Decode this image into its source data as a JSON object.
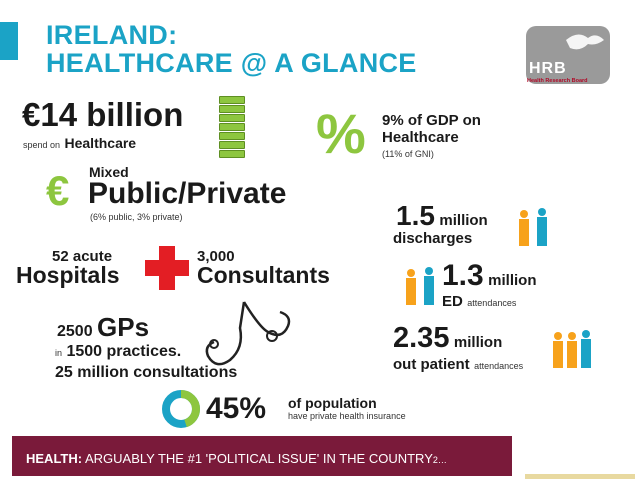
{
  "header": {
    "line1": "IRELAND:",
    "line2": "HEALTHCARE @ A GLANCE",
    "logo_text": "HRB",
    "logo_sub": "Health Research Board",
    "accent_color": "#1ba3c6"
  },
  "spend": {
    "amount": "€14 billion",
    "prefix": "spend on",
    "label": "Healthcare"
  },
  "gdp": {
    "symbol": "%",
    "line1": "9% of GDP on",
    "line2": "Healthcare",
    "note": "(11% of GNI)"
  },
  "mix": {
    "symbol": "€",
    "top": "Mixed",
    "main": "Public/Private",
    "note": "(6% public, 3% private)"
  },
  "hospitals": {
    "count": "52 acute",
    "label": "Hospitals",
    "consultants_count": "3,000",
    "consultants_label": "Consultants"
  },
  "discharges": {
    "value": "1.5",
    "unit": "million",
    "label": "discharges"
  },
  "ed": {
    "value": "1.3",
    "unit": "million",
    "label": "ED",
    "sub": "attendances"
  },
  "outpatient": {
    "value": "2.35",
    "unit": "million",
    "label": "out patient",
    "sub": "attendances"
  },
  "gps": {
    "count": "2500",
    "label": "GPs",
    "practices_prefix": "in",
    "practices": "1500 practices.",
    "consultations": "25 million consultations"
  },
  "insurance": {
    "percent": "45%",
    "line1": "of population",
    "line2": "have private health insurance",
    "share": 0.45
  },
  "banner": {
    "bold": "HEALTH:",
    "text": "ARGUABLY THE #1 'POLITICAL ISSUE' IN THE COUNTRY",
    "suffix": "2…"
  },
  "colors": {
    "green": "#8dc63f",
    "red": "#e31e24",
    "orange": "#f7a21b",
    "blue": "#1ba3c6",
    "banner": "#7a1a3a"
  }
}
